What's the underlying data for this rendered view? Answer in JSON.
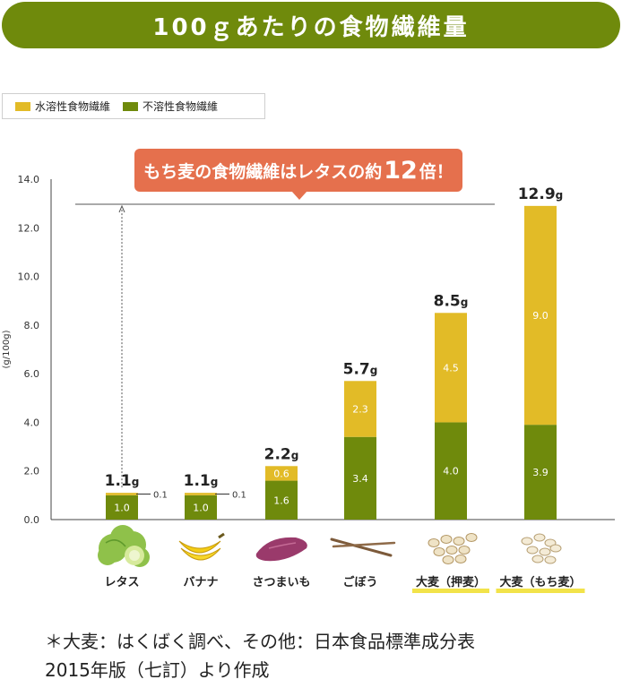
{
  "title": "100ｇあたりの食物繊維量",
  "legend": [
    {
      "label": "水溶性食物繊維",
      "color": "#e2bb27"
    },
    {
      "label": "不溶性食物繊維",
      "color": "#6f8a0c"
    }
  ],
  "callout": {
    "pre": "もち麦の食物繊維はレタスの約",
    "num": "12",
    "post": "倍！"
  },
  "colors": {
    "accent": "#6f8a0c",
    "callout": "#e5704d",
    "soluble": "#e2bb27",
    "insoluble": "#6f8a0c",
    "highlight": "#f2e34a"
  },
  "chart_data": {
    "type": "bar",
    "stacked": true,
    "ylabel": "(g/100g)",
    "ylim": [
      0,
      14
    ],
    "yticks": [
      "0.0",
      "2.0",
      "4.0",
      "6.0",
      "8.0",
      "10.0",
      "12.0",
      "14.0"
    ],
    "categories": [
      "レタス",
      "バナナ",
      "さつまいも",
      "ごぼう",
      "大麦（押麦）",
      "大麦（もち麦）"
    ],
    "highlighted_categories": [
      "大麦（押麦）",
      "大麦（もち麦）"
    ],
    "category_icons": [
      "lettuce-icon",
      "banana-icon",
      "sweet-potato-icon",
      "burdock-icon",
      "pressed-barley-icon",
      "mochi-barley-icon"
    ],
    "series": [
      {
        "name": "不溶性食物繊維",
        "values": [
          1.0,
          1.0,
          1.6,
          3.4,
          4.0,
          3.9
        ],
        "labels": [
          "1.0",
          "1.0",
          "1.6",
          "3.4",
          "4.0",
          "3.9"
        ]
      },
      {
        "name": "水溶性食物繊維",
        "values": [
          0.1,
          0.1,
          0.6,
          2.3,
          4.5,
          9.0
        ],
        "labels": [
          "0.1",
          "0.1",
          "0.6",
          "2.3",
          "4.5",
          "9.0"
        ]
      }
    ],
    "totals": [
      "1.1",
      "1.1",
      "2.2",
      "5.7",
      "8.5",
      "12.9"
    ],
    "total_unit": "g",
    "reference_line_value": 12.9
  },
  "footnote": [
    "＊大麦：はくばく調べ、その他：日本食品標準成分表",
    "2015年版（七訂）より作成"
  ]
}
